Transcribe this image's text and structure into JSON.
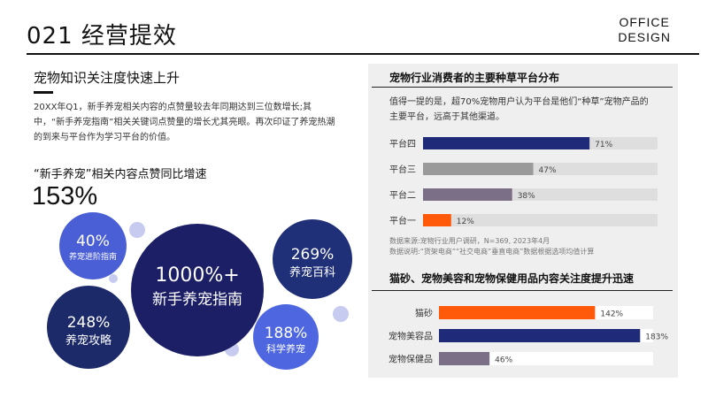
{
  "header": {
    "title": "021 经营提效",
    "brand_line1": "OFFICE",
    "brand_line2": "DESIGN"
  },
  "left": {
    "heading": "宠物知识关注度快速上升",
    "paragraph": "20XX年Q1，新手养宠相关内容的点赞量较去年同期达到三位数增长;其中，“新手养宠指南”相关关键词点赞量的增长尤其亮眼。再次印证了养宠热潮的到来与平台作为学习平台的价值。",
    "sub_heading": "“新手养宠”相关内容点赞同比增速",
    "big_number": "153%",
    "bubbles": [
      {
        "value": "1000%+",
        "label": "新手养宠指南",
        "color": "#1c1f66"
      },
      {
        "value": "40%",
        "label": "养宠进阶指南",
        "color": "#4a5fd6"
      },
      {
        "value": "248%",
        "label": "养宠攻略",
        "color": "#1c2a6a"
      },
      {
        "value": "269%",
        "label": "养宠百科",
        "color": "#1f2f78"
      },
      {
        "value": "188%",
        "label": "科学养宠",
        "color": "#4e67e0"
      }
    ],
    "decor_color": "#c7cbf0"
  },
  "right": {
    "panel_bg": "#efefef",
    "chart1": {
      "title": "宠物行业消费者的主要种草平台分布",
      "description": "值得一提的是，超70%宠物用户认为平台是他们“种草”宠物产品的主要平台，远高于其他渠道。",
      "note1": "数据来源:宠物行业用户调研，N=369, 2023年4月",
      "note2": "数据说明:“货架电商”“社交电商”垂直电商”数据根据选项均值计算"
    },
    "chart2": {
      "title": "猫砂、宠物美容和宠物保健用品内容关注度提升迅速"
    }
  },
  "chart_data": [
    {
      "type": "bar",
      "orientation": "horizontal",
      "title": "宠物行业消费者的主要种草平台分布",
      "categories": [
        "平台四",
        "平台三",
        "平台二",
        "平台一"
      ],
      "values": [
        71,
        47,
        38,
        12
      ],
      "value_labels": [
        "71%",
        "47%",
        "38%",
        "12%"
      ],
      "colors": [
        "#1f2a78",
        "#9a9a9a",
        "#7a6f86",
        "#ff5a0a"
      ],
      "xlim": [
        0,
        100
      ],
      "track_color": "#dedede"
    },
    {
      "type": "bar",
      "orientation": "horizontal",
      "title": "猫砂、宠物美容和宠物保健用品内容关注度提升迅速",
      "categories": [
        "猫砂",
        "宠物美容品",
        "宠物保健品"
      ],
      "values": [
        142,
        183,
        46
      ],
      "value_labels": [
        "142%",
        "183%",
        "46%"
      ],
      "colors": [
        "#ff5a0a",
        "#1f2a78",
        "#7a6f86"
      ],
      "xlim": [
        0,
        190
      ],
      "track_color": "#ffffff"
    }
  ]
}
